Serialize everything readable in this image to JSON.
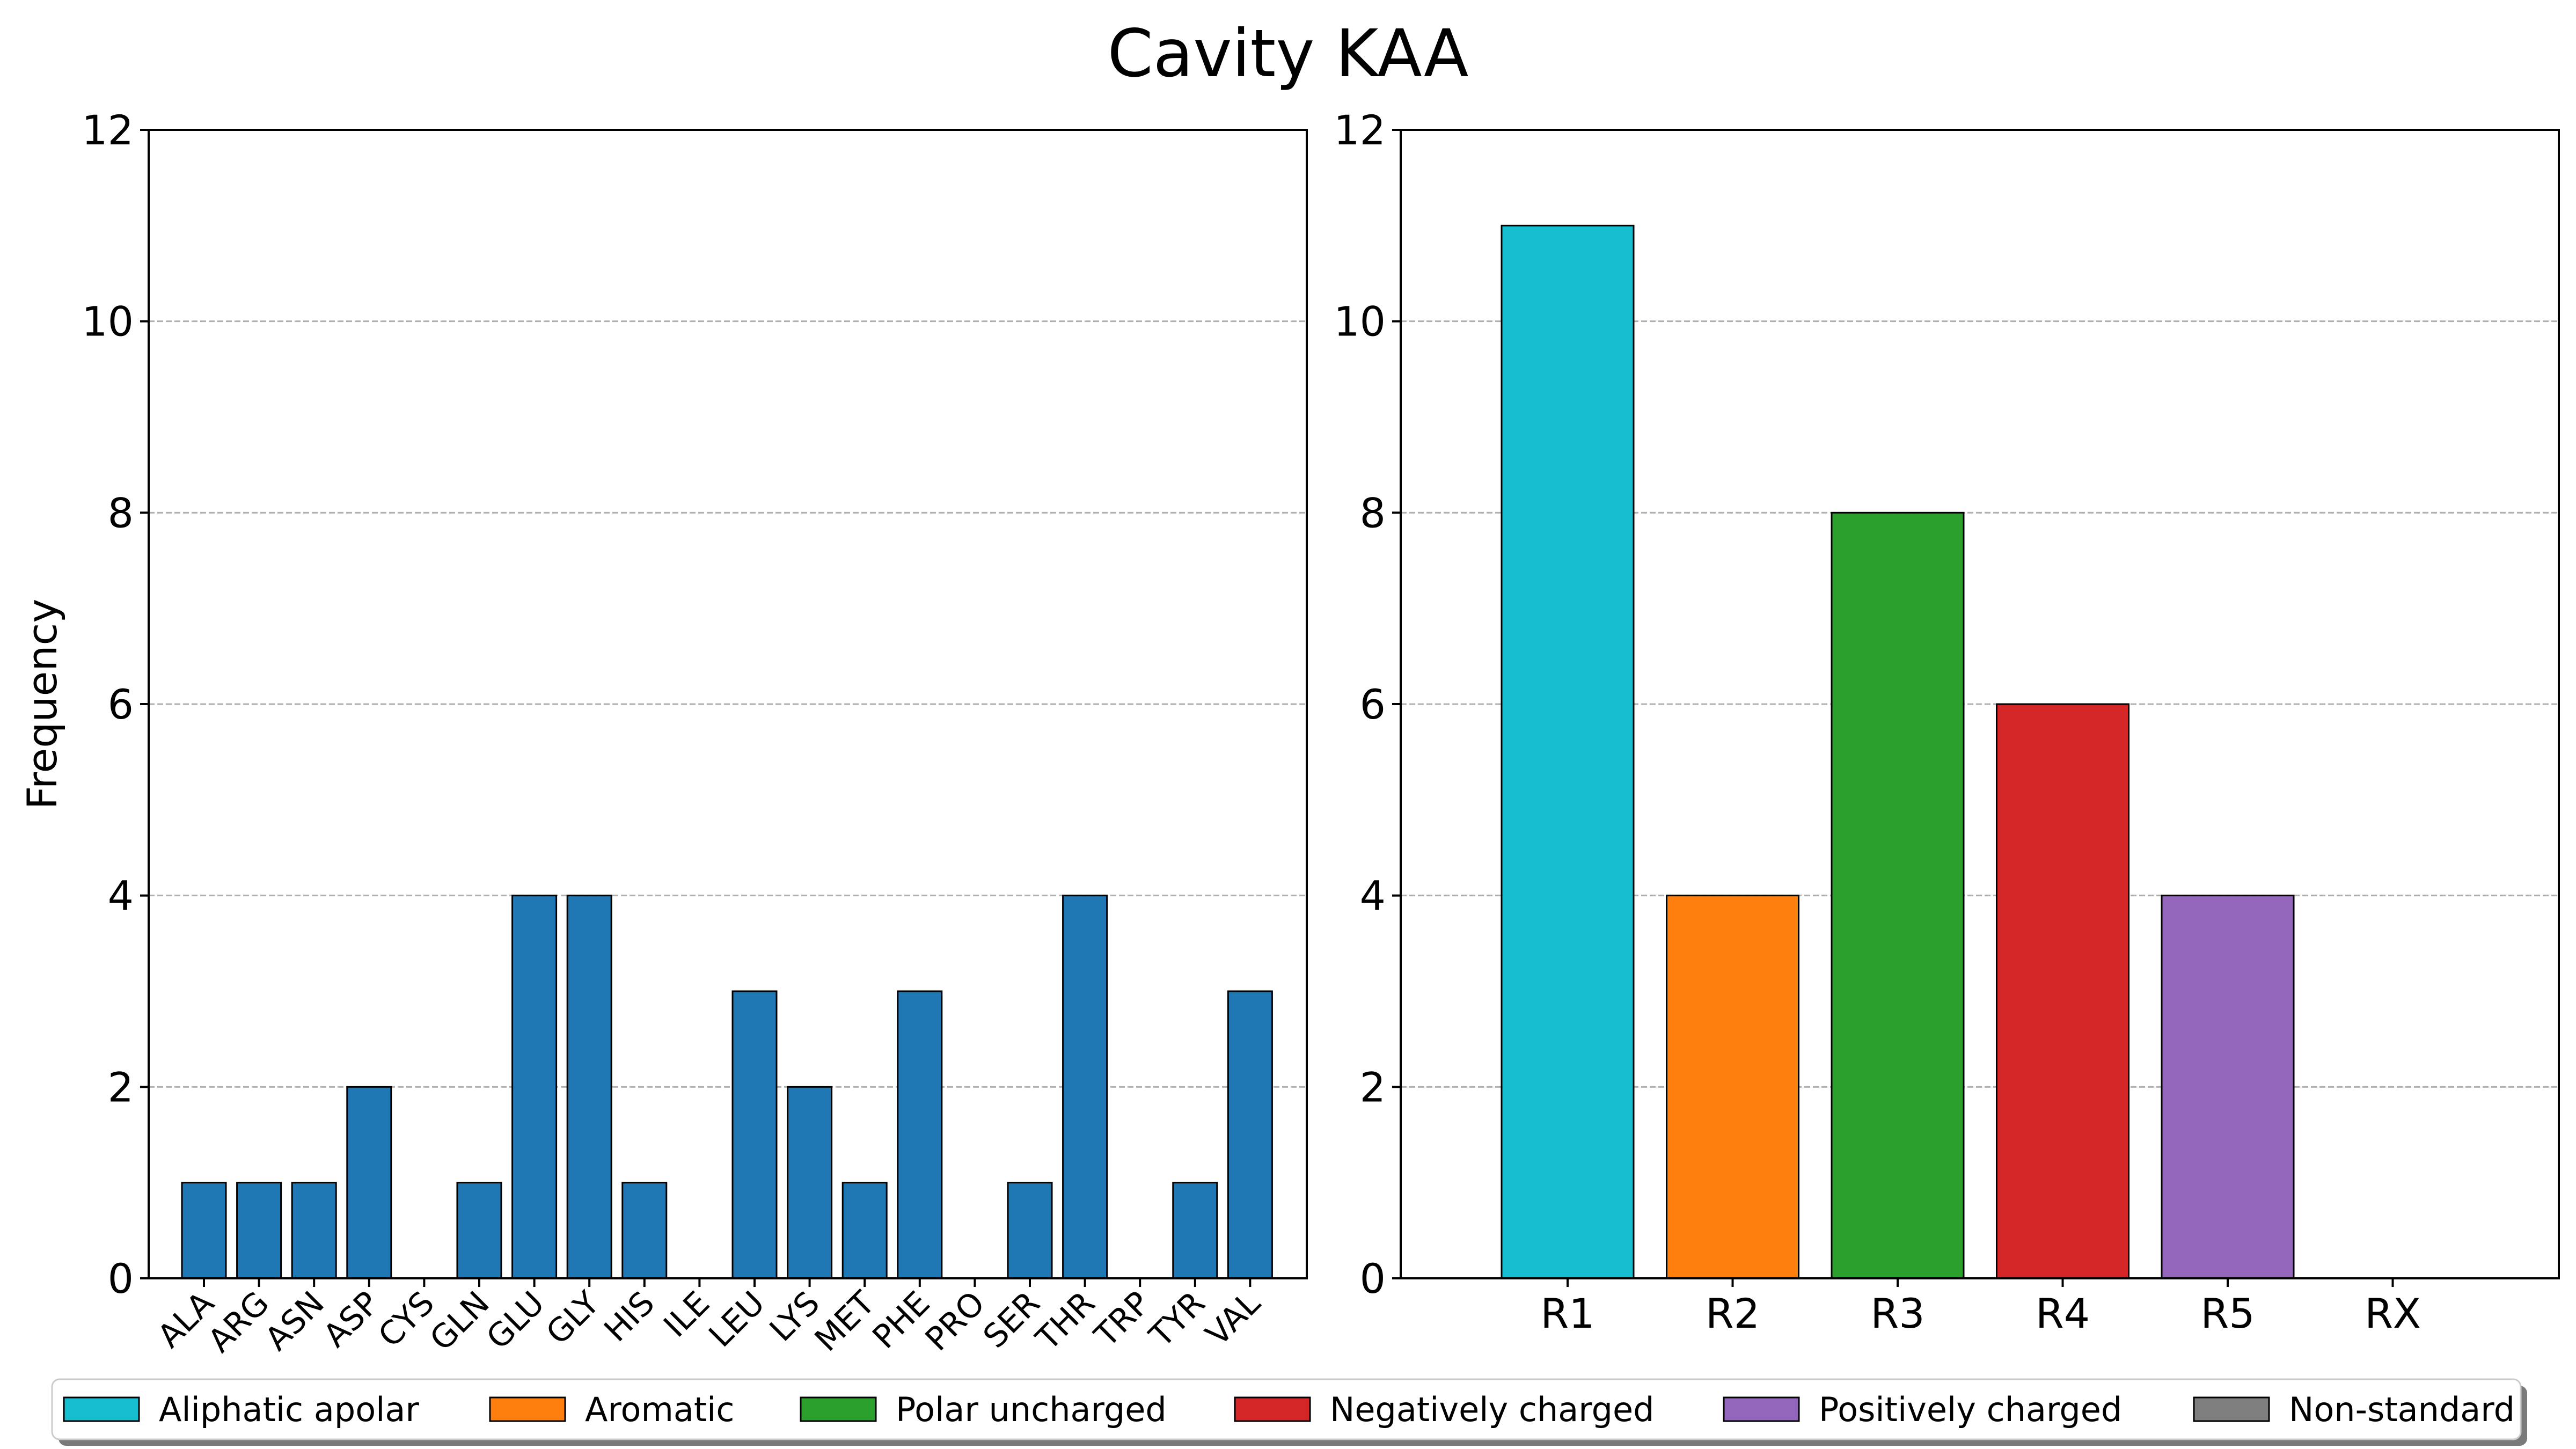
{
  "figure": {
    "title": "Cavity KAA"
  },
  "chart_data": [
    {
      "type": "bar",
      "ylabel": "Frequency",
      "xlabel": "",
      "ylim": [
        0,
        12
      ],
      "yticks": [
        0,
        2,
        4,
        6,
        8,
        10,
        12
      ],
      "grid": "y-dashed",
      "categories": [
        "ALA",
        "ARG",
        "ASN",
        "ASP",
        "CYS",
        "GLN",
        "GLU",
        "GLY",
        "HIS",
        "ILE",
        "LEU",
        "LYS",
        "MET",
        "PHE",
        "PRO",
        "SER",
        "THR",
        "TRP",
        "TYR",
        "VAL"
      ],
      "values": [
        1,
        1,
        1,
        2,
        0,
        1,
        4,
        4,
        1,
        0,
        3,
        2,
        1,
        3,
        0,
        1,
        4,
        0,
        1,
        3
      ],
      "color": "#1f77b4"
    },
    {
      "type": "bar",
      "ylabel": "",
      "xlabel": "",
      "ylim": [
        0,
        12
      ],
      "yticks": [
        0,
        2,
        4,
        6,
        8,
        10,
        12
      ],
      "grid": "y-dashed",
      "categories": [
        "R1",
        "R2",
        "R3",
        "R4",
        "R5",
        "RX"
      ],
      "values": [
        11,
        4,
        8,
        6,
        4,
        0
      ],
      "colors": [
        "#17becf",
        "#ff7f0e",
        "#2ca02c",
        "#d62728",
        "#9467bd",
        "#7f7f7f"
      ]
    }
  ],
  "legend": {
    "placement": "bottom",
    "items": [
      {
        "label": "Aliphatic apolar",
        "color": "#17becf"
      },
      {
        "label": "Aromatic",
        "color": "#ff7f0e"
      },
      {
        "label": "Polar uncharged",
        "color": "#2ca02c"
      },
      {
        "label": "Negatively charged",
        "color": "#d62728"
      },
      {
        "label": "Positively charged",
        "color": "#9467bd"
      },
      {
        "label": "Non-standard",
        "color": "#7f7f7f"
      }
    ]
  }
}
